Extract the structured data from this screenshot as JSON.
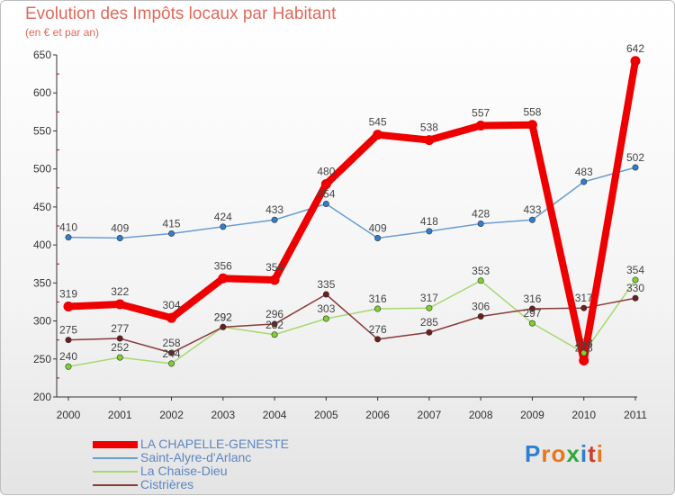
{
  "title": "Evolution des Impôts locaux par Habitant",
  "subtitle": "(en € et par an)",
  "brand": {
    "text": "Proxiti",
    "letters": [
      "P",
      "r",
      "o",
      "x",
      "i",
      "t",
      "i"
    ],
    "colors": [
      "#2f7fd0",
      "#e8761a",
      "#e8761a",
      "#2faa3a",
      "#2f7fd0",
      "#d23a2a",
      "#e8761a"
    ]
  },
  "chart_data": {
    "type": "line",
    "title": "Evolution des Impôts locaux par Habitant",
    "ylabel": "(en € et par an)",
    "xlabel": "",
    "ylim": [
      200,
      650
    ],
    "yticks": [
      200,
      250,
      300,
      350,
      400,
      450,
      500,
      550,
      600,
      650
    ],
    "categories": [
      "2000",
      "2001",
      "2002",
      "2003",
      "2004",
      "2005",
      "2006",
      "2007",
      "2008",
      "2009",
      "2010",
      "2011"
    ],
    "series": [
      {
        "name": "Saint-Alyre-d'Arlanc",
        "color": "#6a9ed0",
        "marker": "#2e7fd1",
        "width": 1.5,
        "values": [
          410,
          409,
          415,
          424,
          433,
          454,
          409,
          418,
          428,
          433,
          483,
          502
        ]
      },
      {
        "name": "La Chaise-Dieu",
        "color": "#a7d870",
        "marker": "#7fd12e",
        "width": 1.5,
        "values": [
          240,
          252,
          244,
          292,
          282,
          303,
          316,
          317,
          353,
          297,
          258,
          354
        ]
      },
      {
        "name": "Cistrières",
        "color": "#8a3a3a",
        "marker": "#6b1e1e",
        "width": 1.5,
        "values": [
          275,
          277,
          258,
          292,
          296,
          335,
          276,
          285,
          306,
          316,
          317,
          330
        ]
      },
      {
        "name": "LA CHAPELLE-GENESTE",
        "color": "#ee0000",
        "marker": "#ee0000",
        "width": 8,
        "values": [
          319,
          322,
          304,
          356,
          354,
          480,
          545,
          538,
          557,
          558,
          248,
          642
        ]
      }
    ],
    "legend": [
      "LA CHAPELLE-GENESTE",
      "Saint-Alyre-d'Arlanc",
      "La Chaise-Dieu",
      "Cistrières"
    ],
    "legend_position": "bottom-left",
    "grid": false
  }
}
